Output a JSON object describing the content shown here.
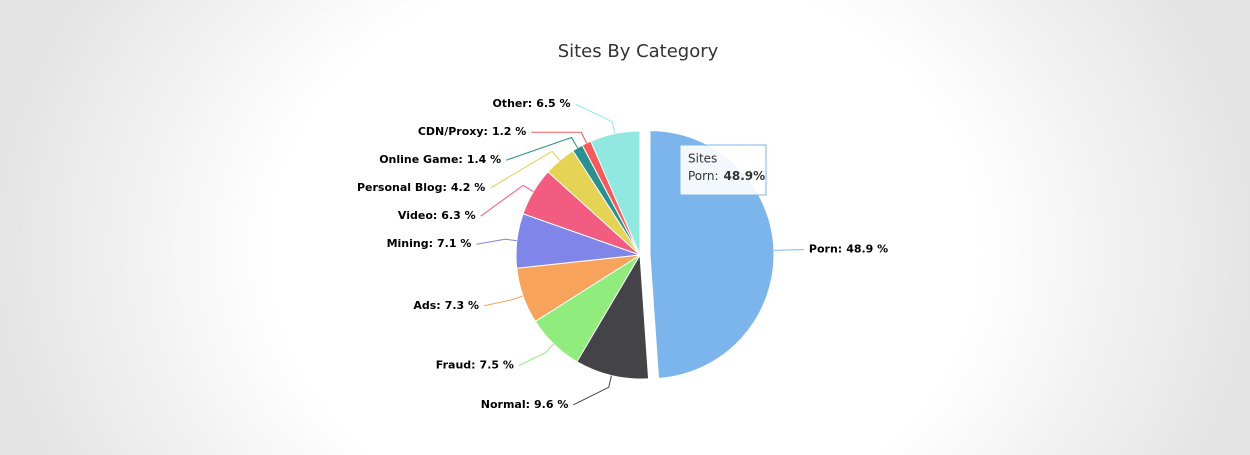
{
  "chart_data": {
    "type": "pie",
    "title": "Sites By Category",
    "categories": [
      "Porn:",
      "Normal:",
      "Fraud:",
      "Ads:",
      "Mining:",
      "Video:",
      "Personal Blog:",
      "Online Game:",
      "CDN/Proxy:",
      "Other:"
    ],
    "values": [
      48.9,
      9.6,
      7.5,
      7.3,
      7.1,
      6.3,
      4.2,
      1.4,
      1.2,
      6.5
    ],
    "value_labels": [
      "48.9 %",
      "9.6 %",
      "7.5 %",
      "7.3 %",
      "7.1 %",
      "6.3 %",
      "4.2 %",
      "1.4 %",
      "1.2 %",
      "6.5 %"
    ],
    "colors": [
      "#7cb5ec",
      "#434348",
      "#90ed7d",
      "#f7a35c",
      "#8085e9",
      "#f15c80",
      "#e4d354",
      "#2b908f",
      "#f45b5b",
      "#91e8e1"
    ],
    "tooltip": {
      "title": "Sites",
      "label": "Porn:",
      "value_label": "48.9%"
    }
  }
}
